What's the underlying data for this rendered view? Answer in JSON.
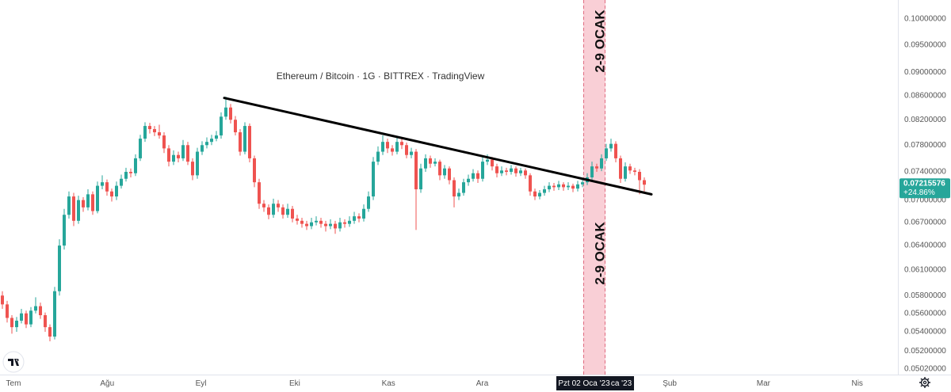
{
  "chart_data": {
    "type": "candlestick",
    "title": "Ethereum / Bitcoin · 1G · BITTREX · TradingView",
    "log_scale": true,
    "grid": false,
    "up_color": "#26a69a",
    "down_color": "#ef5350",
    "ylim": [
      0.04964,
      0.10381
    ],
    "yticks": [
      {
        "value": 0.1,
        "label": "0.10000000"
      },
      {
        "value": 0.095,
        "label": "0.09500000"
      },
      {
        "value": 0.09,
        "label": "0.09000000"
      },
      {
        "value": 0.086,
        "label": "0.08600000"
      },
      {
        "value": 0.082,
        "label": "0.08200000"
      },
      {
        "value": 0.078,
        "label": "0.07800000"
      },
      {
        "value": 0.074,
        "label": "0.07400000"
      },
      {
        "value": 0.07,
        "label": "0.07000000"
      },
      {
        "value": 0.067,
        "label": "0.06700000"
      },
      {
        "value": 0.064,
        "label": "0.06400000"
      },
      {
        "value": 0.061,
        "label": "0.06100000"
      },
      {
        "value": 0.058,
        "label": "0.05800000"
      },
      {
        "value": 0.056,
        "label": "0.05600000"
      },
      {
        "value": 0.054,
        "label": "0.05400000"
      },
      {
        "value": 0.052,
        "label": "0.05200000"
      },
      {
        "value": 0.0502,
        "label": "0.05020000"
      }
    ],
    "x_labels": [
      "Tem",
      "Ağu",
      "Eyl",
      "Eki",
      "Kas",
      "Ara",
      null,
      "Şub",
      "Mar",
      "Nis"
    ],
    "crosshair_label": "Pzt 02 Oca '23",
    "crosshair_label_tail": "ca '23",
    "price_tag": {
      "value": 0.07215576,
      "label": "0.07215576"
    },
    "change_label": "+24.86%",
    "annotation": "2-9 OCAK",
    "trendline": {
      "from": 0.0856,
      "to": 0.0708,
      "color": "#000000"
    },
    "ohlc": [
      [
        0.058,
        0.0585,
        0.0565,
        0.057
      ],
      [
        0.057,
        0.0574,
        0.055,
        0.0555
      ],
      [
        0.0555,
        0.0558,
        0.0538,
        0.0545
      ],
      [
        0.0545,
        0.0556,
        0.054,
        0.0552
      ],
      [
        0.0552,
        0.0565,
        0.0549,
        0.056
      ],
      [
        0.056,
        0.0563,
        0.0544,
        0.0548
      ],
      [
        0.0548,
        0.0567,
        0.0545,
        0.0563
      ],
      [
        0.0563,
        0.0578,
        0.056,
        0.0568
      ],
      [
        0.0568,
        0.0572,
        0.0554,
        0.0558
      ],
      [
        0.0558,
        0.0561,
        0.054,
        0.0545
      ],
      [
        0.0545,
        0.0548,
        0.053,
        0.0535
      ],
      [
        0.0535,
        0.059,
        0.0532,
        0.0585
      ],
      [
        0.0585,
        0.0648,
        0.058,
        0.064
      ],
      [
        0.064,
        0.0688,
        0.0635,
        0.068
      ],
      [
        0.068,
        0.0712,
        0.0675,
        0.0705
      ],
      [
        0.0705,
        0.071,
        0.0665,
        0.0672
      ],
      [
        0.0672,
        0.0706,
        0.0668,
        0.07
      ],
      [
        0.07,
        0.0704,
        0.0684,
        0.069
      ],
      [
        0.069,
        0.0715,
        0.0686,
        0.0708
      ],
      [
        0.0708,
        0.0712,
        0.068,
        0.0685
      ],
      [
        0.0685,
        0.0726,
        0.0682,
        0.072
      ],
      [
        0.072,
        0.0735,
        0.0715,
        0.0725
      ],
      [
        0.0725,
        0.0729,
        0.0706,
        0.0712
      ],
      [
        0.0712,
        0.0716,
        0.0698,
        0.0705
      ],
      [
        0.0705,
        0.0726,
        0.07,
        0.072
      ],
      [
        0.072,
        0.0736,
        0.0716,
        0.073
      ],
      [
        0.073,
        0.0746,
        0.0726,
        0.074
      ],
      [
        0.074,
        0.0745,
        0.0732,
        0.0738
      ],
      [
        0.0738,
        0.0766,
        0.0734,
        0.076
      ],
      [
        0.076,
        0.0796,
        0.0756,
        0.079
      ],
      [
        0.079,
        0.0816,
        0.0785,
        0.081
      ],
      [
        0.081,
        0.0815,
        0.0798,
        0.0805
      ],
      [
        0.0805,
        0.081,
        0.0794,
        0.08
      ],
      [
        0.08,
        0.0812,
        0.079,
        0.0795
      ],
      [
        0.0795,
        0.08,
        0.0768,
        0.0775
      ],
      [
        0.0775,
        0.078,
        0.0748,
        0.0755
      ],
      [
        0.0755,
        0.0772,
        0.075,
        0.0765
      ],
      [
        0.0765,
        0.077,
        0.0754,
        0.076
      ],
      [
        0.076,
        0.0788,
        0.0756,
        0.078
      ],
      [
        0.078,
        0.0785,
        0.075,
        0.0755
      ],
      [
        0.0755,
        0.076,
        0.0728,
        0.0735
      ],
      [
        0.0735,
        0.0776,
        0.073,
        0.077
      ],
      [
        0.077,
        0.0786,
        0.0765,
        0.078
      ],
      [
        0.078,
        0.0792,
        0.0775,
        0.0785
      ],
      [
        0.0785,
        0.0796,
        0.078,
        0.079
      ],
      [
        0.079,
        0.0802,
        0.0786,
        0.0795
      ],
      [
        0.0795,
        0.0832,
        0.079,
        0.0825
      ],
      [
        0.0825,
        0.0858,
        0.082,
        0.084
      ],
      [
        0.084,
        0.0846,
        0.0814,
        0.082
      ],
      [
        0.082,
        0.0826,
        0.0795,
        0.08
      ],
      [
        0.08,
        0.0805,
        0.0764,
        0.077
      ],
      [
        0.077,
        0.0816,
        0.0766,
        0.081
      ],
      [
        0.081,
        0.0814,
        0.0754,
        0.076
      ],
      [
        0.076,
        0.0764,
        0.0718,
        0.0725
      ],
      [
        0.0725,
        0.073,
        0.0688,
        0.0695
      ],
      [
        0.0695,
        0.07,
        0.0684,
        0.069
      ],
      [
        0.069,
        0.0694,
        0.0674,
        0.068
      ],
      [
        0.068,
        0.0702,
        0.0676,
        0.0695
      ],
      [
        0.0695,
        0.07,
        0.0684,
        0.069
      ],
      [
        0.069,
        0.0694,
        0.0675,
        0.068
      ],
      [
        0.068,
        0.0695,
        0.0676,
        0.0688
      ],
      [
        0.0688,
        0.0692,
        0.067,
        0.0675
      ],
      [
        0.0675,
        0.068,
        0.0667,
        0.0672
      ],
      [
        0.0672,
        0.0676,
        0.0663,
        0.0668
      ],
      [
        0.0668,
        0.0672,
        0.066,
        0.0665
      ],
      [
        0.0665,
        0.0676,
        0.0661,
        0.067
      ],
      [
        0.067,
        0.0678,
        0.0666,
        0.0672
      ],
      [
        0.0672,
        0.0676,
        0.0663,
        0.0668
      ],
      [
        0.0668,
        0.0672,
        0.0658,
        0.0665
      ],
      [
        0.0665,
        0.0674,
        0.0661,
        0.0668
      ],
      [
        0.0668,
        0.0672,
        0.0655,
        0.0662
      ],
      [
        0.0662,
        0.0676,
        0.0658,
        0.067
      ],
      [
        0.067,
        0.0674,
        0.0663,
        0.0668
      ],
      [
        0.0668,
        0.0678,
        0.0664,
        0.0672
      ],
      [
        0.0672,
        0.0684,
        0.0668,
        0.0678
      ],
      [
        0.0678,
        0.0682,
        0.067,
        0.0675
      ],
      [
        0.0675,
        0.0694,
        0.0671,
        0.0688
      ],
      [
        0.0688,
        0.0712,
        0.0684,
        0.0705
      ],
      [
        0.0705,
        0.0762,
        0.07,
        0.0755
      ],
      [
        0.0755,
        0.0778,
        0.075,
        0.077
      ],
      [
        0.077,
        0.0795,
        0.0765,
        0.0785
      ],
      [
        0.0785,
        0.079,
        0.0768,
        0.0775
      ],
      [
        0.0775,
        0.078,
        0.0764,
        0.077
      ],
      [
        0.077,
        0.0792,
        0.0766,
        0.0785
      ],
      [
        0.0785,
        0.079,
        0.0774,
        0.078
      ],
      [
        0.078,
        0.0784,
        0.076,
        0.0765
      ],
      [
        0.0765,
        0.0776,
        0.076,
        0.077
      ],
      [
        0.077,
        0.0774,
        0.066,
        0.0715
      ],
      [
        0.0715,
        0.0752,
        0.071,
        0.0745
      ],
      [
        0.0745,
        0.0766,
        0.074,
        0.076
      ],
      [
        0.076,
        0.0764,
        0.0746,
        0.0752
      ],
      [
        0.0752,
        0.076,
        0.0748,
        0.0755
      ],
      [
        0.0755,
        0.0758,
        0.0728,
        0.0735
      ],
      [
        0.0735,
        0.075,
        0.073,
        0.0745
      ],
      [
        0.0745,
        0.0748,
        0.0722,
        0.0728
      ],
      [
        0.0728,
        0.0732,
        0.069,
        0.0705
      ],
      [
        0.0705,
        0.0716,
        0.07,
        0.071
      ],
      [
        0.071,
        0.073,
        0.0706,
        0.0725
      ],
      [
        0.0725,
        0.0736,
        0.072,
        0.073
      ],
      [
        0.073,
        0.0744,
        0.0726,
        0.0738
      ],
      [
        0.0738,
        0.0742,
        0.0724,
        0.073
      ],
      [
        0.073,
        0.0762,
        0.0726,
        0.0755
      ],
      [
        0.0755,
        0.0766,
        0.075,
        0.0758
      ],
      [
        0.0758,
        0.0762,
        0.0742,
        0.0748
      ],
      [
        0.0748,
        0.0752,
        0.0732,
        0.0738
      ],
      [
        0.0738,
        0.0748,
        0.0734,
        0.0742
      ],
      [
        0.0742,
        0.0746,
        0.0735,
        0.074
      ],
      [
        0.074,
        0.075,
        0.0736,
        0.0745
      ],
      [
        0.0745,
        0.0748,
        0.0733,
        0.0738
      ],
      [
        0.0738,
        0.0746,
        0.0734,
        0.0742
      ],
      [
        0.0742,
        0.0745,
        0.073,
        0.0735
      ],
      [
        0.0735,
        0.0738,
        0.0706,
        0.0712
      ],
      [
        0.0712,
        0.0716,
        0.07,
        0.0705
      ],
      [
        0.0705,
        0.0714,
        0.0701,
        0.071
      ],
      [
        0.071,
        0.072,
        0.0706,
        0.0715
      ],
      [
        0.0715,
        0.0725,
        0.0711,
        0.072
      ],
      [
        0.072,
        0.0724,
        0.0713,
        0.0718
      ],
      [
        0.0718,
        0.0727,
        0.0714,
        0.0722
      ],
      [
        0.0722,
        0.0725,
        0.0713,
        0.0718
      ],
      [
        0.0718,
        0.0725,
        0.0714,
        0.072
      ],
      [
        0.072,
        0.0723,
        0.0711,
        0.0716
      ],
      [
        0.0716,
        0.0727,
        0.0712,
        0.0722
      ],
      [
        0.0722,
        0.073,
        0.0718,
        0.0725
      ],
      [
        0.0725,
        0.0738,
        0.0721,
        0.0732
      ],
      [
        0.0732,
        0.0755,
        0.0728,
        0.0748
      ],
      [
        0.0748,
        0.0752,
        0.074,
        0.0745
      ],
      [
        0.0745,
        0.0766,
        0.0741,
        0.076
      ],
      [
        0.076,
        0.0782,
        0.0756,
        0.0775
      ],
      [
        0.0775,
        0.079,
        0.077,
        0.0782
      ],
      [
        0.0782,
        0.0786,
        0.0754,
        0.076
      ],
      [
        0.076,
        0.0764,
        0.0724,
        0.073
      ],
      [
        0.073,
        0.0754,
        0.0726,
        0.0748
      ],
      [
        0.0748,
        0.0752,
        0.0737,
        0.0742
      ],
      [
        0.0742,
        0.0746,
        0.0735,
        0.074
      ],
      [
        0.074,
        0.0744,
        0.0708,
        0.0728
      ],
      [
        0.0728,
        0.0732,
        0.0712,
        0.07215576
      ]
    ]
  }
}
